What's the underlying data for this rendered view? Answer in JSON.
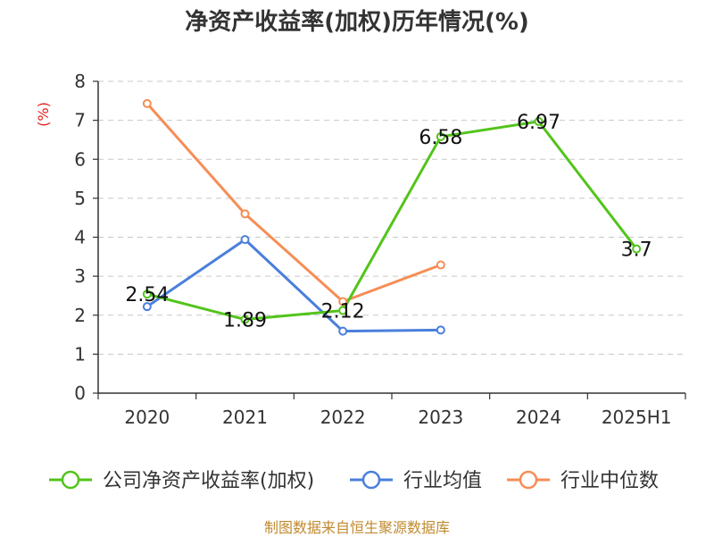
{
  "title": "净资产收益率(加权)历年情况(%)",
  "source": "制图数据来自恒生聚源数据库",
  "chart_data": {
    "type": "line",
    "title": "净资产收益率(加权)历年情况(%)",
    "ylabel": "(%)",
    "ylim": [
      0,
      8
    ],
    "yticks": [
      0,
      1,
      2,
      3,
      4,
      5,
      6,
      7,
      8
    ],
    "grid": true,
    "legend_position": "bottom",
    "categories": [
      "2020",
      "2021",
      "2022",
      "2023",
      "2024",
      "2025H1"
    ],
    "series": [
      {
        "name": "公司净资产收益率(加权)",
        "color": "#52c41a",
        "values": [
          2.54,
          1.89,
          2.12,
          6.58,
          6.97,
          3.7
        ],
        "labels": [
          "2.54",
          "1.89",
          "2.12",
          "6.58",
          "6.97",
          "3.7"
        ]
      },
      {
        "name": "行业均值",
        "color": "#4a7fdc",
        "values": [
          2.22,
          3.94,
          1.59,
          1.62,
          null,
          null
        ]
      },
      {
        "name": "行业中位数",
        "color": "#f68d55",
        "values": [
          7.43,
          4.6,
          2.35,
          3.29,
          null,
          null
        ]
      }
    ]
  }
}
